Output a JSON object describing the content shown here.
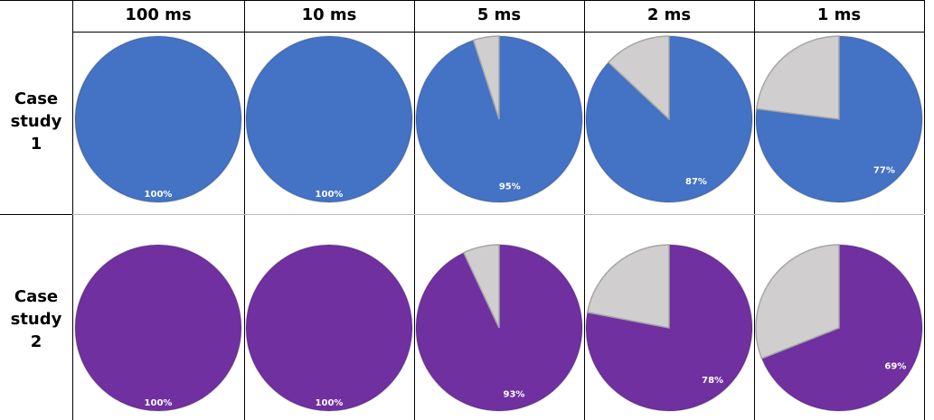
{
  "chart_data": {
    "type": "pie",
    "columns": [
      "100 ms",
      "10 ms",
      "5 ms",
      "2 ms",
      "1 ms"
    ],
    "rows": [
      {
        "label": [
          "Case",
          "study",
          "1"
        ],
        "color": "#4472C4",
        "values": [
          100,
          100,
          95,
          87,
          77
        ],
        "labels": [
          "100%",
          "100%",
          "95%",
          "87%",
          "77%"
        ]
      },
      {
        "label": [
          "Case",
          "study",
          "2"
        ],
        "color": "#7030A0",
        "values": [
          100,
          100,
          93,
          78,
          69
        ],
        "labels": [
          "100%",
          "100%",
          "93%",
          "78%",
          "69%"
        ]
      }
    ],
    "remainder_color": "#D0CECE"
  }
}
